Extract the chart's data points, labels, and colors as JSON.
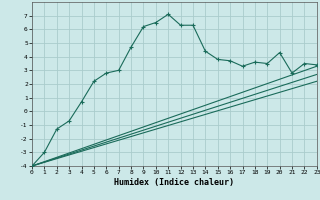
{
  "xlabel": "Humidex (Indice chaleur)",
  "background_color": "#cce8e8",
  "grid_color": "#aacccc",
  "line_color": "#1a6b5a",
  "xlim": [
    0,
    23
  ],
  "ylim": [
    -4,
    8
  ],
  "xticks": [
    0,
    1,
    2,
    3,
    4,
    5,
    6,
    7,
    8,
    9,
    10,
    11,
    12,
    13,
    14,
    15,
    16,
    17,
    18,
    19,
    20,
    21,
    22,
    23
  ],
  "yticks": [
    -4,
    -3,
    -2,
    -1,
    0,
    1,
    2,
    3,
    4,
    5,
    6,
    7
  ],
  "curve1_x": [
    0,
    1,
    2,
    3,
    4,
    5,
    6,
    7,
    8,
    9,
    10,
    11,
    12,
    13,
    14,
    15,
    16,
    17,
    18,
    19,
    20,
    21,
    22,
    23
  ],
  "curve1_y": [
    -4,
    -3,
    -1.3,
    -0.7,
    0.7,
    2.2,
    2.8,
    3.0,
    4.7,
    6.2,
    6.5,
    7.1,
    6.3,
    6.3,
    4.4,
    3.8,
    3.7,
    3.3,
    3.6,
    3.5,
    4.3,
    2.8,
    3.5,
    3.4
  ],
  "curve2_x": [
    0,
    23
  ],
  "curve2_y": [
    -4,
    2.2
  ],
  "curve3_x": [
    0,
    23
  ],
  "curve3_y": [
    -4,
    2.7
  ],
  "curve4_x": [
    0,
    23
  ],
  "curve4_y": [
    -4,
    3.3
  ]
}
